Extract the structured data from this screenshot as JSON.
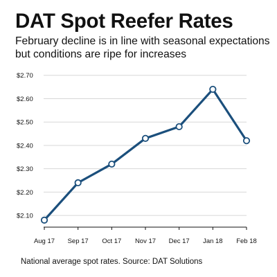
{
  "title": "DAT Spot Reefer Rates",
  "subtitle": "February decline is in line with seasonal expectations but conditions are ripe for increases",
  "footnote": "National average spot rates. Source: DAT Solutions",
  "colors": {
    "line": "#1b4f7c",
    "marker_fill": "#ffffff",
    "grid": "#d7d7d7",
    "axis": "#111111"
  },
  "chart_data": {
    "type": "line",
    "title": "DAT Spot Reefer Rates",
    "subtitle": "February decline is in line with seasonal expectations but conditions are ripe for increases",
    "xlabel": "",
    "ylabel": "",
    "categories": [
      "Aug 17",
      "Sep 17",
      "Oct 17",
      "Nov 17",
      "Dec 17",
      "Jan 18",
      "Feb 18"
    ],
    "series": [
      {
        "values": [
          2.08,
          2.24,
          2.32,
          2.43,
          2.48,
          2.64,
          2.42
        ]
      }
    ],
    "ylim": [
      2.05,
      2.72
    ],
    "yticks": [
      2.1,
      2.2,
      2.3,
      2.4,
      2.5,
      2.6,
      2.7
    ],
    "ytick_labels": [
      "$2.10",
      "$2.20",
      "$2.30",
      "$2.40",
      "$2.50",
      "$2.60",
      "$2.70"
    ],
    "grid": true,
    "legend": "none"
  }
}
